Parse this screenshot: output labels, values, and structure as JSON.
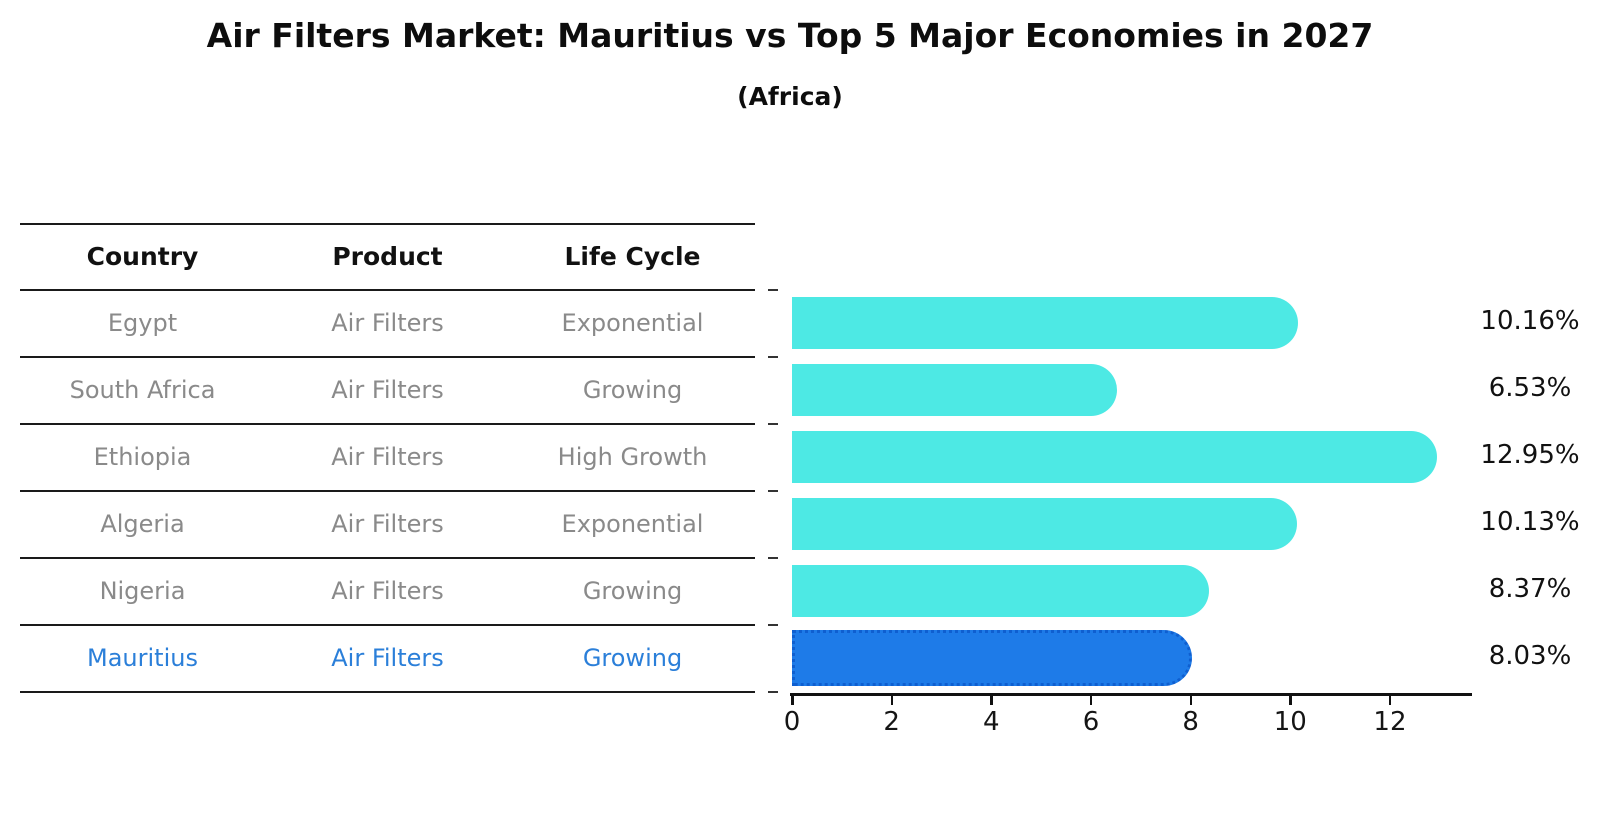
{
  "title": "Air Filters Market: Mauritius vs Top 5 Major Economies in 2027",
  "subtitle": "(Africa)",
  "table": {
    "headers": [
      "Country",
      "Product",
      "Life Cycle"
    ],
    "rows": [
      {
        "country": "Egypt",
        "product": "Air Filters",
        "life_cycle": "Exponential"
      },
      {
        "country": "South Africa",
        "product": "Air Filters",
        "life_cycle": "Growing"
      },
      {
        "country": "Ethiopia",
        "product": "Air Filters",
        "life_cycle": "High Growth"
      },
      {
        "country": "Algeria",
        "product": "Air Filters",
        "life_cycle": "Exponential"
      },
      {
        "country": "Nigeria",
        "product": "Air Filters",
        "life_cycle": "Growing"
      },
      {
        "country": "Mauritius",
        "product": "Air Filters",
        "life_cycle": "Growing"
      }
    ]
  },
  "chart_data": {
    "type": "bar",
    "orientation": "horizontal",
    "title": "Air Filters Market: Mauritius vs Top 5 Major Economies in 2027",
    "subtitle": "(Africa)",
    "categories": [
      "Egypt",
      "South Africa",
      "Ethiopia",
      "Algeria",
      "Nigeria",
      "Mauritius"
    ],
    "values": [
      10.16,
      6.53,
      12.95,
      10.13,
      8.37,
      8.03
    ],
    "value_labels": [
      "10.16%",
      "6.53%",
      "12.95%",
      "10.13%",
      "8.37%",
      "8.03%"
    ],
    "x_ticks": [
      "0",
      "2",
      "4",
      "6",
      "8",
      "10",
      "12"
    ],
    "x_tick_values": [
      0,
      2,
      4,
      6,
      8,
      10,
      12
    ],
    "xlim": [
      0,
      13.65
    ],
    "grid": false,
    "legend": "none",
    "highlight_index": 5,
    "colors": {
      "bar": "#4de9e4",
      "highlight_bar": "#1e7be8",
      "highlight_border": "#0f5fd0",
      "row_text": "#8a8a8a",
      "highlight_text": "#2b7fd9",
      "axis": "#111111"
    }
  }
}
